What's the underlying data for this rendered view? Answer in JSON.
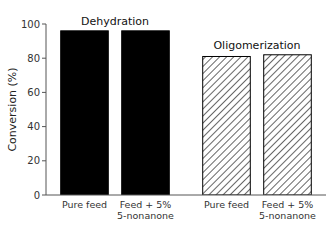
{
  "chart_data": {
    "type": "bar",
    "ylabel": "Conversion (%)",
    "categories": [
      "Pure feed",
      "Feed + 5%\n5-nonanone"
    ],
    "series": [
      {
        "name": "Dehydration",
        "color": "#000000",
        "values": [
          96,
          96
        ]
      },
      {
        "name": "Oligomerization",
        "color": "#ffffff",
        "values": [
          81,
          82
        ]
      }
    ],
    "ylim": [
      0,
      100
    ],
    "yticks": [
      0,
      20,
      40,
      60,
      80,
      100
    ],
    "grid": false
  }
}
